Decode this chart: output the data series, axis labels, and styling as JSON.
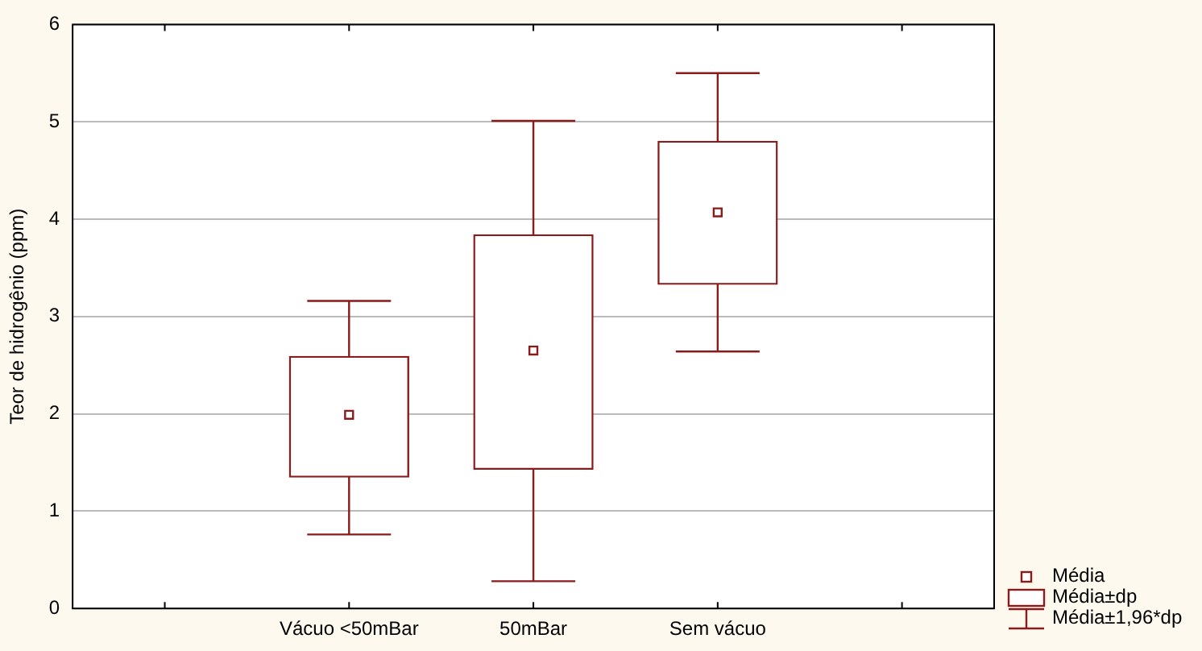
{
  "chart_data": {
    "type": "box",
    "ylabel": "Teor de hidrogênio (ppm)",
    "categories": [
      null,
      "Vácuo <50mBar",
      "50mBar",
      "Sem vácuo",
      null
    ],
    "color": "#8b1a1a",
    "boxes": [
      null,
      {
        "low": 0.76,
        "q1": 1.35,
        "median": 1.99,
        "q3": 2.59,
        "high": 3.16
      },
      {
        "low": 0.28,
        "q1": 1.43,
        "median": 2.65,
        "q3": 3.84,
        "high": 5.01
      },
      {
        "low": 2.64,
        "q1": 3.33,
        "median": 4.07,
        "q3": 4.8,
        "high": 5.5
      },
      null
    ],
    "ylim": [
      0,
      6
    ],
    "yticks": [
      0,
      1,
      2,
      3,
      4,
      5,
      6
    ],
    "grid": "y",
    "annotations": [
      "Média",
      "Média±dp",
      "Média±1,96*dp"
    ]
  }
}
